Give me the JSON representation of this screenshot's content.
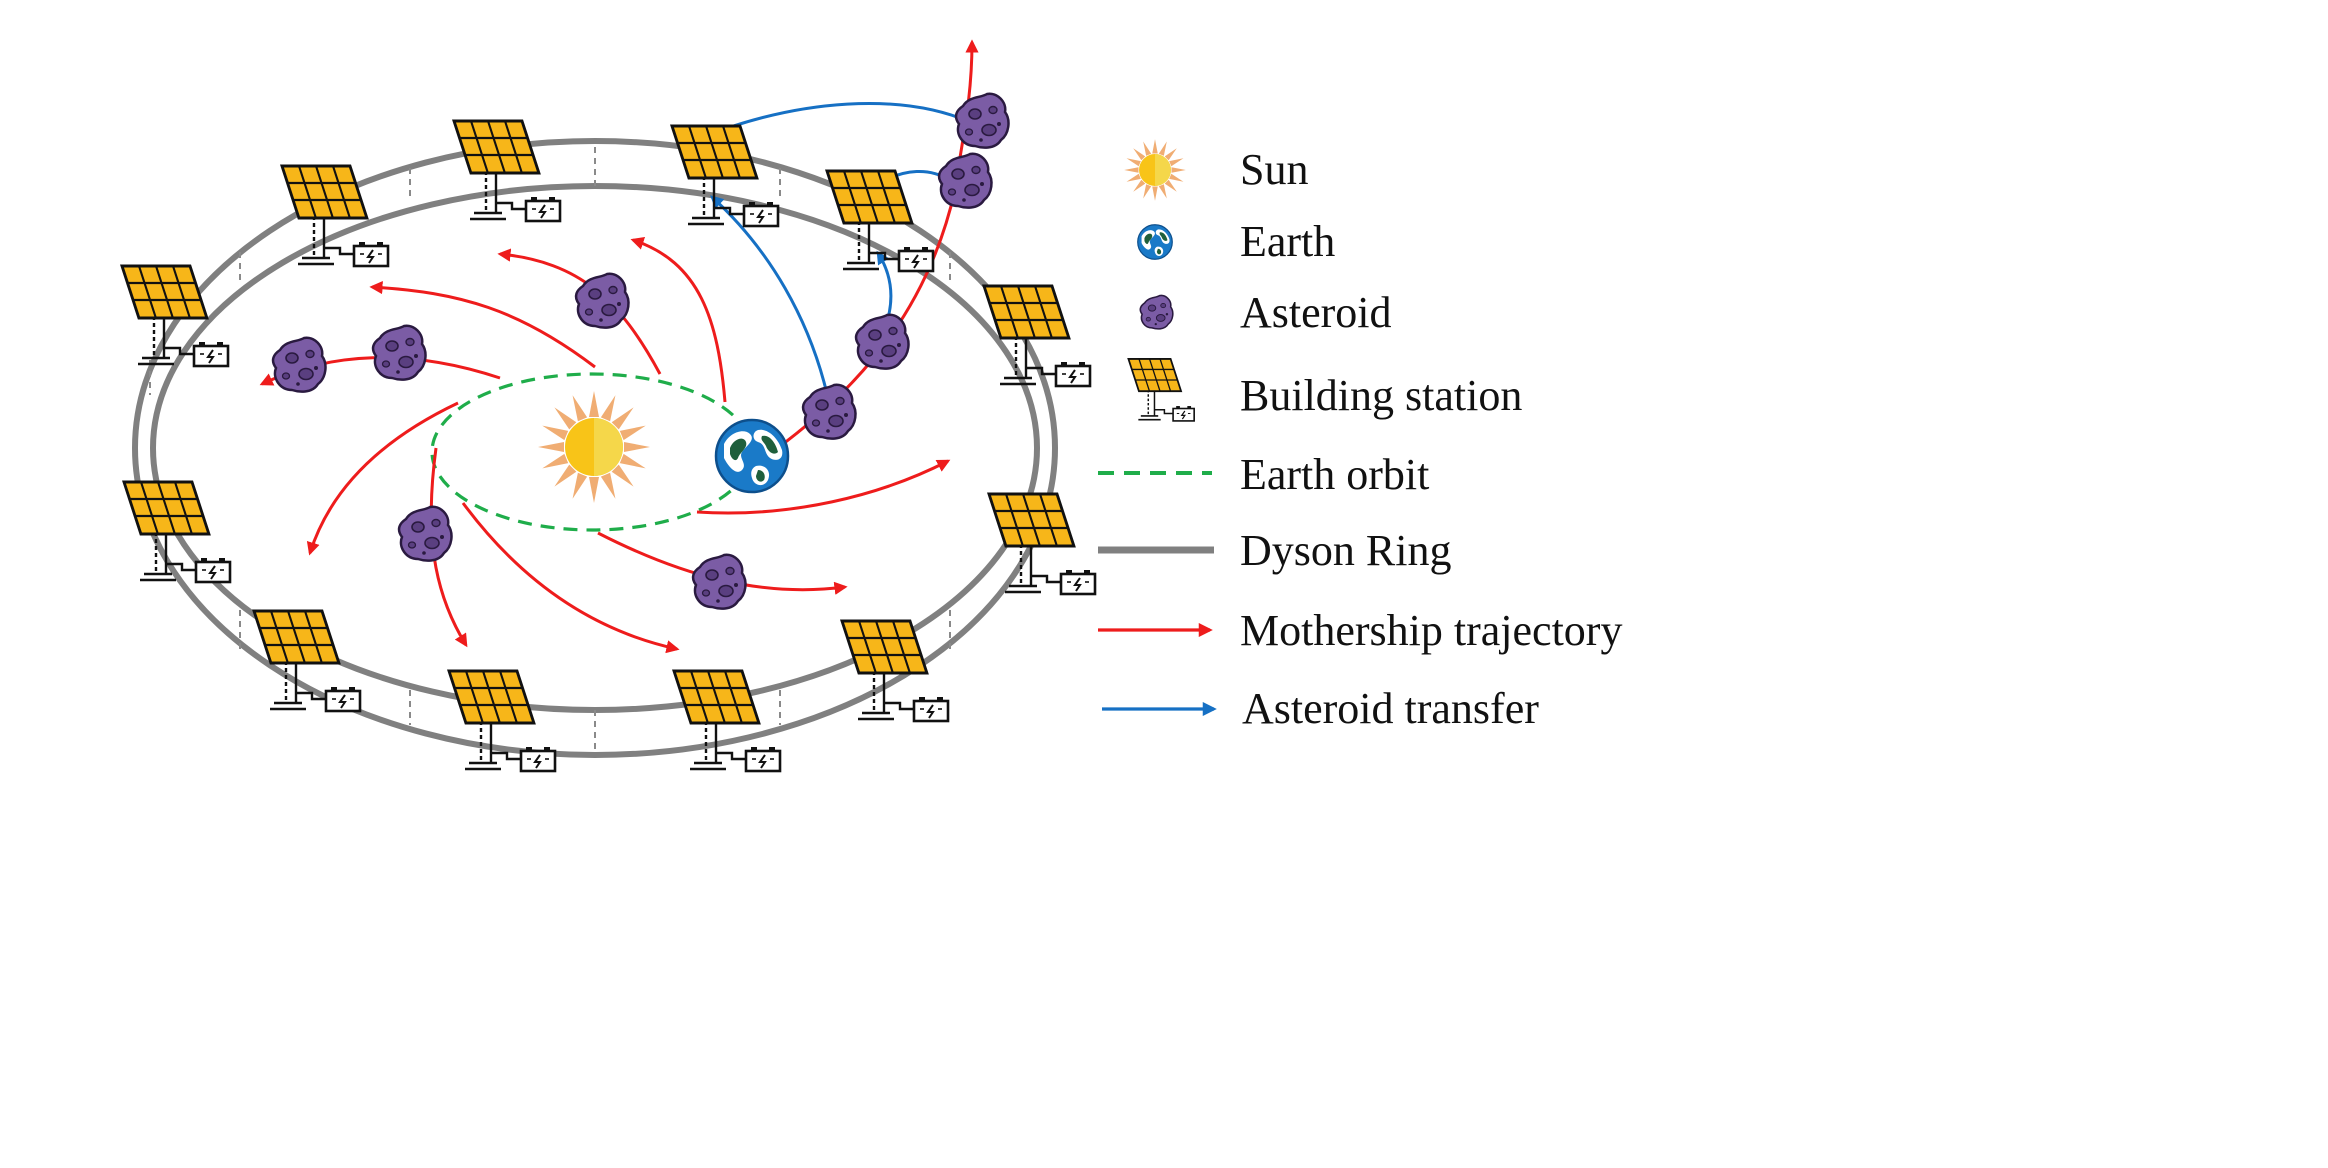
{
  "colors": {
    "ring": "#808080",
    "ring_dash": "#8a8a8a",
    "earth_orbit": "#1fad4a",
    "mothership": "#ee1c1c",
    "asteroid_transfer": "#1670c4",
    "sun_core": "#f8c418",
    "sun_ray": "#f0ad73",
    "panel": "#f7b619",
    "asteroid": "#7b5ca5",
    "earth_ocean": "#1a7ac8",
    "earth_land": "#1f5f3c"
  },
  "legend": [
    {
      "id": "sun",
      "label": "Sun",
      "icon": "sun-icon"
    },
    {
      "id": "earth",
      "label": "Earth",
      "icon": "earth-icon"
    },
    {
      "id": "asteroid",
      "label": "Asteroid",
      "icon": "asteroid-icon"
    },
    {
      "id": "building-station",
      "label": "Building station",
      "icon": "solar-station-icon"
    },
    {
      "id": "earth-orbit",
      "label": "Earth orbit",
      "icon": "dashed-green-line"
    },
    {
      "id": "dyson-ring",
      "label": "Dyson Ring",
      "icon": "gray-line"
    },
    {
      "id": "mothership-trajectory",
      "label": "Mothership trajectory",
      "icon": "red-arrow"
    },
    {
      "id": "asteroid-transfer",
      "label": "Asteroid transfer",
      "icon": "blue-arrow"
    }
  ]
}
